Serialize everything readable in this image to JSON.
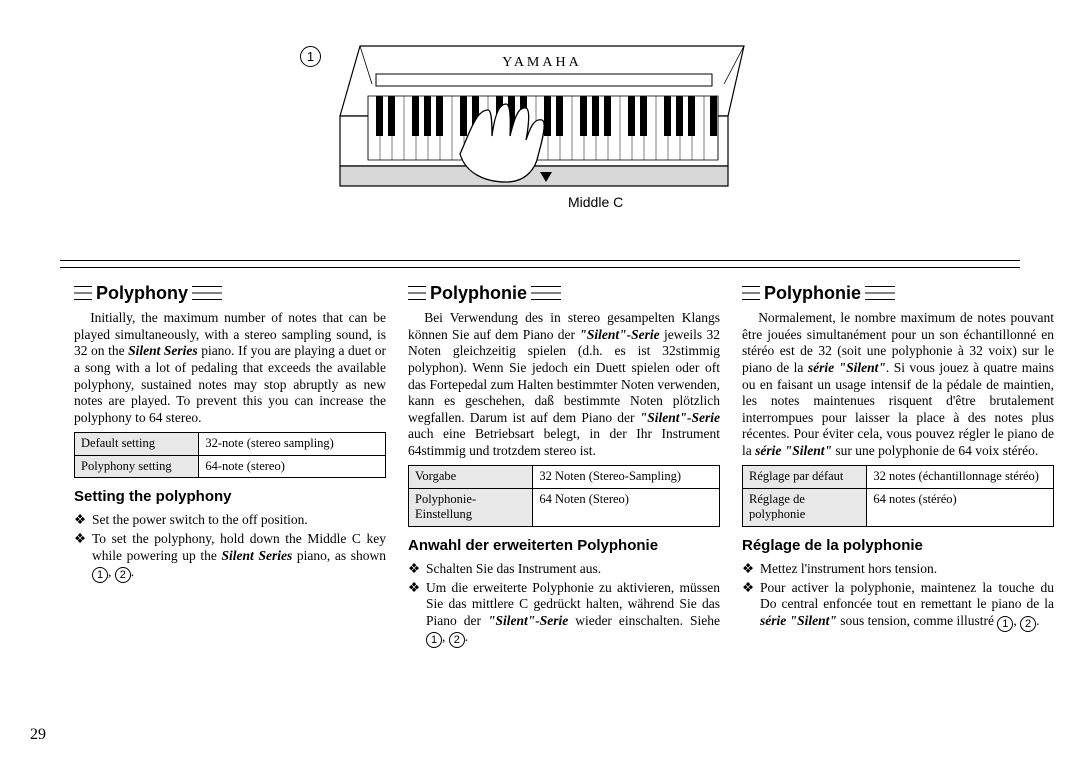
{
  "figure": {
    "marker1": "1",
    "brand": "YAMAHA",
    "middle_c": "Middle C"
  },
  "page_number": "29",
  "columns": {
    "en": {
      "heading": "Polyphony",
      "para": "Initially, the maximum number of notes that can be played simultaneously, with a stereo sampling sound, is 32 on the <em class='bi'>Silent Series</em> piano. If you are playing a duet or a song with a lot of pedaling that exceeds the available polyphony, sustained notes may stop abruptly as new notes are played. To prevent this you can increase the polyphony to 64 stereo.",
      "table": {
        "r1": {
          "label": "Default setting",
          "value": "32-note (stereo sampling)"
        },
        "r2": {
          "label": "Polyphony setting",
          "value": "64-note (stereo)"
        }
      },
      "subheading": "Setting the polyphony",
      "steps": [
        "Set the power switch to the off position.",
        "To set the polyphony, hold down the Middle C key while powering up the <em class='bi'>Silent Series</em> piano, as shown <span class='circ'>1</span>, <span class='circ'>2</span>."
      ]
    },
    "de": {
      "heading": "Polyphonie",
      "para": "Bei Verwendung des in stereo gesampelten Klangs können Sie auf dem Piano der <em class='bi'>\"Silent\"-Serie</em> jeweils 32 Noten gleichzeitig spielen (d.h. es ist 32stimmig polyphon). Wenn Sie jedoch ein Duett spielen oder oft das Fortepedal zum Halten bestimmter Noten verwenden, kann es geschehen, daß bestimmte Noten plötzlich wegfallen. Darum ist auf dem Piano der <em class='bi'>\"Silent\"-Serie</em> auch eine Betriebsart belegt, in der Ihr Instrument 64stimmig und trotzdem stereo ist.",
      "table": {
        "r1": {
          "label": "Vorgabe",
          "value": "32 Noten (Stereo-Sampling)"
        },
        "r2": {
          "label": "Polyphonie-Einstellung",
          "value": "64 Noten (Stereo)"
        }
      },
      "subheading": "Anwahl der erweiterten Polyphonie",
      "steps": [
        "Schalten Sie das Instrument aus.",
        "Um die erweiterte Polyphonie zu aktivieren, müssen Sie das mittlere C gedrückt halten, während Sie das Piano der <em class='bi'>\"Silent\"-Serie</em> wieder einschalten. Siehe <span class='circ'>1</span>, <span class='circ'>2</span>."
      ]
    },
    "fr": {
      "heading": "Polyphonie",
      "para": "Normalement, le nombre maximum de notes pouvant être jouées simultanément pour un son échantillonné en stéréo est de 32 (soit une polyphonie à 32 voix) sur le piano de la <em class='bi'>série \"Silent\"</em>. Si vous jouez à quatre mains ou en faisant un usage intensif de la pédale de maintien, les notes maintenues risquent d'être brutalement interrompues pour laisser la place à des notes plus récentes. Pour éviter cela, vous pouvez régler le piano de la <em class='bi'>série \"Silent\"</em> sur une polyphonie de 64 voix stéréo.",
      "table": {
        "r1": {
          "label": "Réglage par défaut",
          "value": "32 notes (échantillonnage stéréo)"
        },
        "r2": {
          "label": "Réglage de polyphonie",
          "value": "64 notes (stéréo)"
        }
      },
      "subheading": "Réglage de la polyphonie",
      "steps": [
        "Mettez l'instrument hors tension.",
        "Pour activer la polyphonie, maintenez la touche du Do central enfoncée tout en remettant le piano de la <em class='bi'>série \"Silent\"</em> sous tension, comme illustré <span class='circ'>1</span>, <span class='circ'>2</span>."
      ]
    }
  }
}
